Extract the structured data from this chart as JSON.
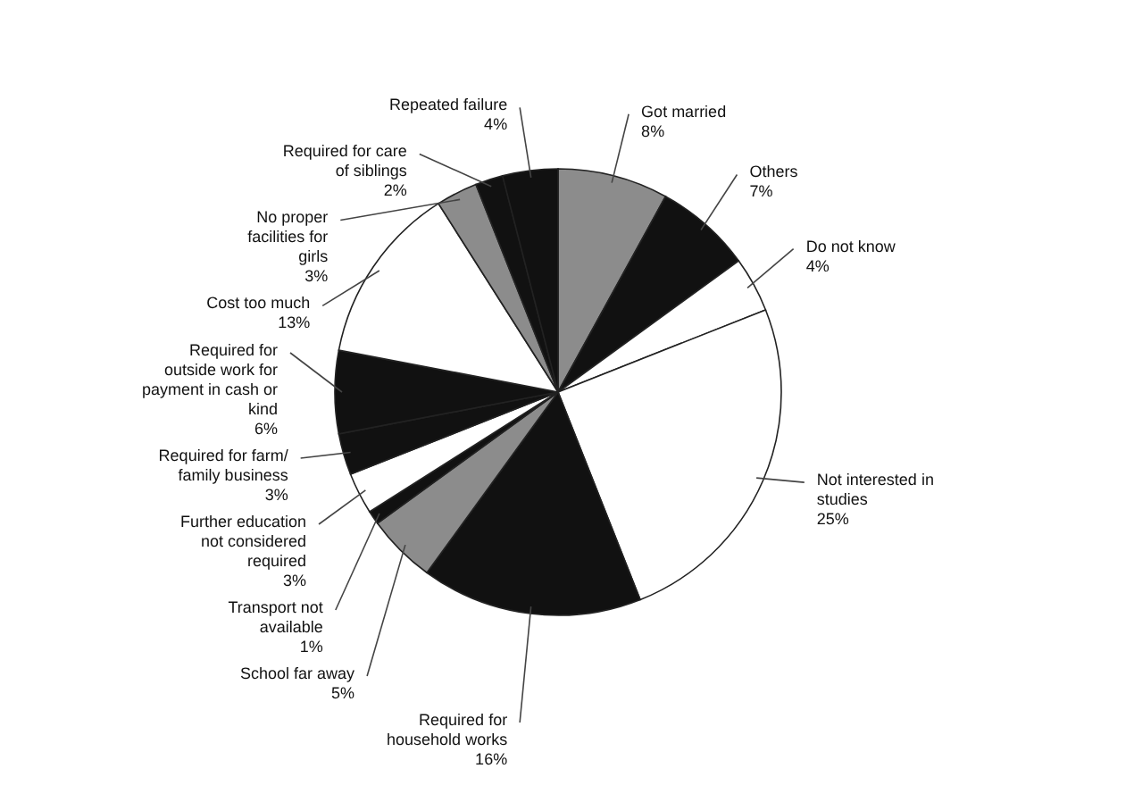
{
  "chart_data": {
    "type": "pie",
    "categories": [
      "Got married",
      "Others",
      "Do not know",
      "Not interested in studies",
      "Required for household works",
      "School far away",
      "Transport not available",
      "Further education not considered required",
      "Required for farm/ family business",
      "Required for outside work for payment in cash or kind",
      "Cost too much",
      "No proper facilities for girls",
      "Required for care of siblings",
      "Repeated failure"
    ],
    "values": [
      8,
      7,
      4,
      25,
      16,
      5,
      1,
      3,
      3,
      6,
      13,
      3,
      2,
      4
    ],
    "value_labels": [
      "8%",
      "7%",
      "4%",
      "25%",
      "16%",
      "5%",
      "1%",
      "3%",
      "3%",
      "6%",
      "13%",
      "3%",
      "2%",
      "4%"
    ],
    "colors": [
      "#8c8c8c",
      "#111111",
      "#ffffff",
      "#ffffff",
      "#111111",
      "#8c8c8c",
      "#111111",
      "#ffffff",
      "#111111",
      "#111111",
      "#ffffff",
      "#8c8c8c",
      "#111111",
      "#111111"
    ],
    "legend": false
  }
}
